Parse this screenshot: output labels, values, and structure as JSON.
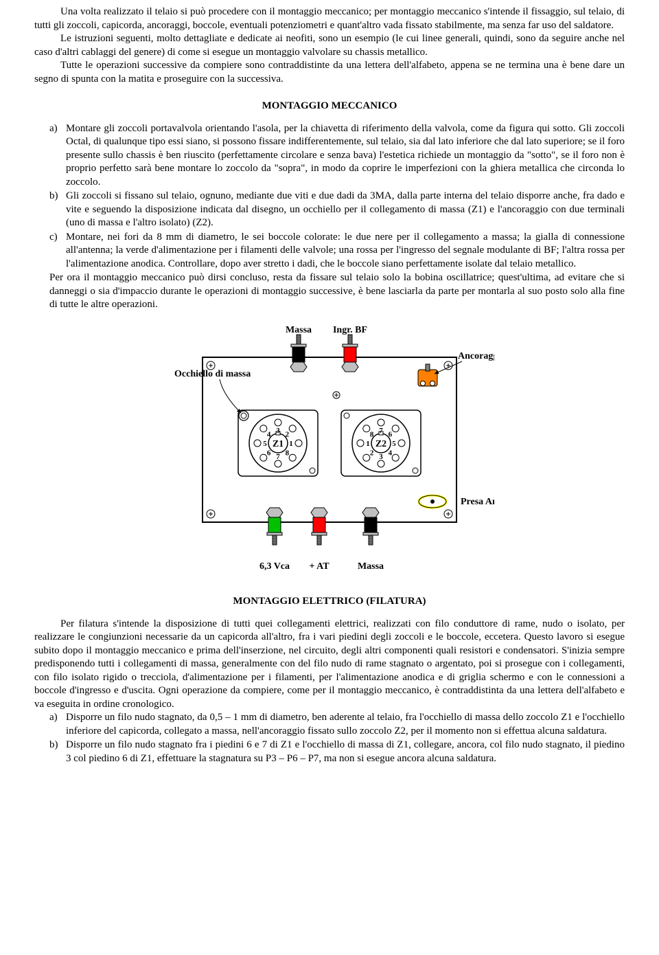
{
  "para1": "Una volta realizzato il telaio si può procedere con il montaggio meccanico; per montaggio meccanico s'intende il fissaggio, sul telaio, di tutti gli zoccoli, capicorda, ancoraggi, boccole, eventuali potenziometri e quant'altro vada fissato stabilmente, ma senza far uso del saldatore.",
  "para2": "Le istruzioni seguenti, molto dettagliate e dedicate ai neofiti, sono un esempio (le cui linee generali, quindi, sono da seguire anche nel caso d'altri cablaggi del genere) di come si esegue un montaggio valvolare su chassis metallico.",
  "para3": "Tutte le operazioni successive da compiere sono contraddistinte da una lettera dell'alfabeto, appena se ne termina una è bene dare un segno di spunta con la matita e proseguire con la successiva.",
  "heading1": "MONTAGGIO MECCANICO",
  "listA": {
    "a": "Montare gli zoccoli portavalvola orientando l'asola, per la chiavetta di riferimento della valvola, come da figura qui sotto. Gli zoccoli Octal, di qualunque tipo essi siano, si possono fissare indifferentemente, sul telaio, sia dal lato inferiore che dal lato superiore; se il foro presente sullo chassis è ben riuscito (perfettamente circolare e senza bava) l'estetica richiede un montaggio da \"sotto\", se il foro non è proprio perfetto sarà bene montare lo zoccolo da \"sopra\", in modo da coprire le imperfezioni con la ghiera metallica che circonda lo zoccolo.",
    "b": "Gli zoccoli si fissano sul telaio, ognuno, mediante due viti e due dadi da 3MA, dalla parte interna del telaio disporre anche, fra dado e vite e seguendo la disposizione indicata dal disegno, un occhiello per il collegamento di massa (Z1) e l'ancoraggio con due terminali (uno di massa e l'altro isolato) (Z2).",
    "c": "Montare, nei fori da 8 mm di diametro, le sei boccole colorate: le due nere per il collegamento a massa; la gialla di connessione all'antenna; la verde d'alimentazione per i filamenti delle valvole; una rossa per l'ingresso del segnale modulante di BF; l'altra rossa per l'alimentazione anodica. Controllare, dopo aver stretto i dadi, che le boccole siano perfettamente isolate dal telaio metallico."
  },
  "afterA": "Per ora il montaggio meccanico può dirsi concluso, resta da fissare sul telaio solo la bobina oscillatrice; quest'ultima, ad evitare che si danneggi o sia d'impaccio durante le operazioni di montaggio successive, è bene lasciarla da parte per montarla al suo posto solo alla fine di tutte le altre operazioni.",
  "figure": {
    "labels": {
      "massa_top": "Massa",
      "ingr_bf": "Ingr. BF",
      "occhiello": "Occhiello di massa",
      "ancoraggio": "Ancoraggio",
      "z1": "Z1",
      "z2": "Z2",
      "v63": "6,3 Vca",
      "at": "+ AT",
      "massa_bot": "Massa",
      "presa_ant": "Presa Ant."
    },
    "colors": {
      "black": "#000000",
      "red": "#ff0000",
      "green": "#00c000",
      "yellow": "#ffff00",
      "orange": "#ff8000",
      "gray": "#c0c0c0",
      "white": "#ffffff",
      "terminal": "#808080"
    },
    "z1_pins": [
      {
        "n": 1,
        "angle": 0
      },
      {
        "n": 2,
        "angle": 315
      },
      {
        "n": 3,
        "angle": 270
      },
      {
        "n": 4,
        "angle": 225
      },
      {
        "n": 5,
        "angle": 180
      },
      {
        "n": 6,
        "angle": 135
      },
      {
        "n": 7,
        "angle": 90
      },
      {
        "n": 8,
        "angle": 45
      }
    ],
    "z2_pins": [
      {
        "n": 1,
        "angle": 180
      },
      {
        "n": 2,
        "angle": 135
      },
      {
        "n": 3,
        "angle": 90
      },
      {
        "n": 4,
        "angle": 45
      },
      {
        "n": 5,
        "angle": 0
      },
      {
        "n": 6,
        "angle": 315
      },
      {
        "n": 7,
        "angle": 270
      },
      {
        "n": 8,
        "angle": 225
      }
    ]
  },
  "heading2": "MONTAGGIO ELETTRICO (FILATURA)",
  "para4": "Per filatura s'intende la disposizione di tutti quei collegamenti elettrici, realizzati con filo conduttore di rame, nudo o isolato, per realizzare le congiunzioni necessarie da un capicorda all'altro, fra i vari piedini degli zoccoli e le boccole, eccetera. Questo lavoro si esegue subito dopo il montaggio meccanico e prima dell'inserzione, nel circuito, degli altri componenti quali resistori e condensatori. S'inizia sempre predisponendo tutti i collegamenti di massa, generalmente con del filo nudo di rame stagnato o argentato, poi si prosegue con i collegamenti, con filo isolato rigido o trecciola, d'alimentazione per i filamenti, per l'alimentazione anodica e di griglia schermo e con le connessioni a boccole d'ingresso e d'uscita. Ogni operazione da compiere, come per il montaggio meccanico, è contraddistinta da una lettera dell'alfabeto e va eseguita in ordine cronologico.",
  "listB": {
    "a": "Disporre un filo nudo stagnato, da 0,5 – 1 mm di diametro, ben aderente al telaio, fra l'occhiello di massa dello zoccolo Z1 e l'occhiello inferiore del capicorda, collegato a massa, nell'ancoraggio fissato sullo zoccolo Z2, per il momento non si effettua alcuna saldatura.",
    "b": "Disporre un filo nudo stagnato fra i piedini 6 e 7 di Z1 e l'occhiello di massa di Z1, collegare, ancora, col filo nudo stagnato, il piedino 3 col piedino 6 di Z1, effettuare la stagnatura su P3 – P6 – P7, ma non si esegue ancora alcuna saldatura."
  }
}
